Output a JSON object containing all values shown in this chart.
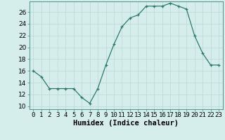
{
  "x": [
    0,
    1,
    2,
    3,
    4,
    5,
    6,
    7,
    8,
    9,
    10,
    11,
    12,
    13,
    14,
    15,
    16,
    17,
    18,
    19,
    20,
    21,
    22,
    23
  ],
  "y": [
    16,
    15,
    13,
    13,
    13,
    13,
    11.5,
    10.5,
    13,
    17,
    20.5,
    23.5,
    25,
    25.5,
    27,
    27,
    27,
    27.5,
    27,
    26.5,
    22,
    19,
    17,
    17
  ],
  "xlabel": "Humidex (Indice chaleur)",
  "xlim": [
    -0.5,
    23.5
  ],
  "ylim": [
    9.5,
    27.8
  ],
  "yticks": [
    10,
    12,
    14,
    16,
    18,
    20,
    22,
    24,
    26
  ],
  "xtick_labels": [
    "0",
    "1",
    "2",
    "3",
    "4",
    "5",
    "6",
    "7",
    "8",
    "9",
    "10",
    "11",
    "12",
    "13",
    "14",
    "15",
    "16",
    "17",
    "18",
    "19",
    "20",
    "21",
    "22",
    "23"
  ],
  "line_color": "#2d7a6a",
  "bg_color": "#d6eeeb",
  "grid_color": "#b8d8d4",
  "label_fontsize": 7.5,
  "tick_fontsize": 6.5
}
